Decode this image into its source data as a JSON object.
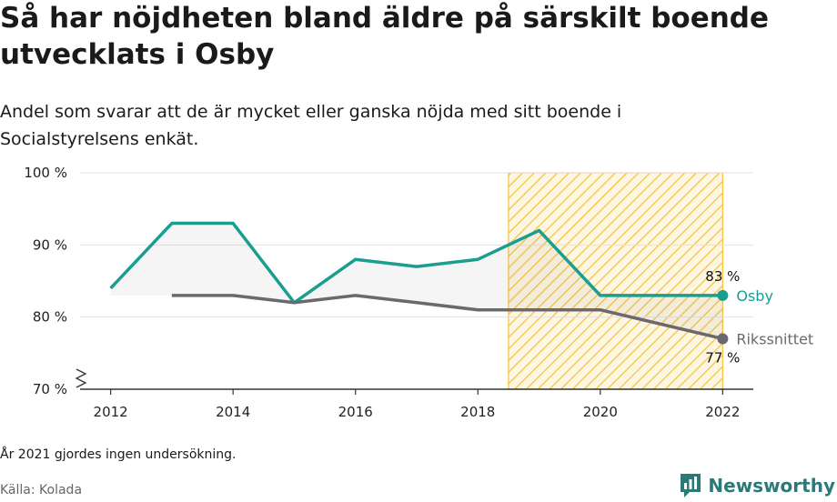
{
  "header": {
    "title": "Så har nöjdheten bland äldre på särskilt boende utvecklats i Osby",
    "subtitle": "Andel som svarar att de är mycket eller ganska nöjda med sitt boende i Socialstyrelsens enkät."
  },
  "footer": {
    "note": "År 2021 gjordes ingen undersökning.",
    "source": "Källa: Kolada",
    "brand": "Newsworthy"
  },
  "chart_data": {
    "type": "line",
    "x_ticks": [
      2012,
      2014,
      2016,
      2018,
      2020,
      2022
    ],
    "y_ticks": [
      {
        "value": 70,
        "label": "70 %"
      },
      {
        "value": 80,
        "label": "80 %"
      },
      {
        "value": 90,
        "label": "90 %"
      },
      {
        "value": 100,
        "label": "100 %"
      }
    ],
    "xlim": [
      2011.5,
      2022.5
    ],
    "ylim": [
      70,
      100
    ],
    "y_axis_broken": true,
    "grid": true,
    "highlight_region": {
      "from": 2018.5,
      "to": 2022,
      "pattern": "hatched",
      "color": "#f5c242"
    },
    "series": [
      {
        "name": "Osby",
        "color": "#1a9e8f",
        "points": [
          {
            "x": 2012,
            "y": 84
          },
          {
            "x": 2013,
            "y": 93
          },
          {
            "x": 2014,
            "y": 93
          },
          {
            "x": 2015,
            "y": 82
          },
          {
            "x": 2016,
            "y": 88
          },
          {
            "x": 2017,
            "y": 87
          },
          {
            "x": 2018,
            "y": 88
          },
          {
            "x": 2019,
            "y": 92
          },
          {
            "x": 2020,
            "y": 83
          },
          {
            "x": 2022,
            "y": 83
          }
        ],
        "end_label": "83 %"
      },
      {
        "name": "Rikssnittet",
        "color": "#6b6870",
        "points": [
          {
            "x": 2013,
            "y": 83
          },
          {
            "x": 2014,
            "y": 83
          },
          {
            "x": 2015,
            "y": 82
          },
          {
            "x": 2016,
            "y": 83
          },
          {
            "x": 2017,
            "y": 82
          },
          {
            "x": 2018,
            "y": 81
          },
          {
            "x": 2019,
            "y": 81
          },
          {
            "x": 2020,
            "y": 81
          },
          {
            "x": 2022,
            "y": 77
          }
        ],
        "end_label": "77 %"
      }
    ]
  }
}
